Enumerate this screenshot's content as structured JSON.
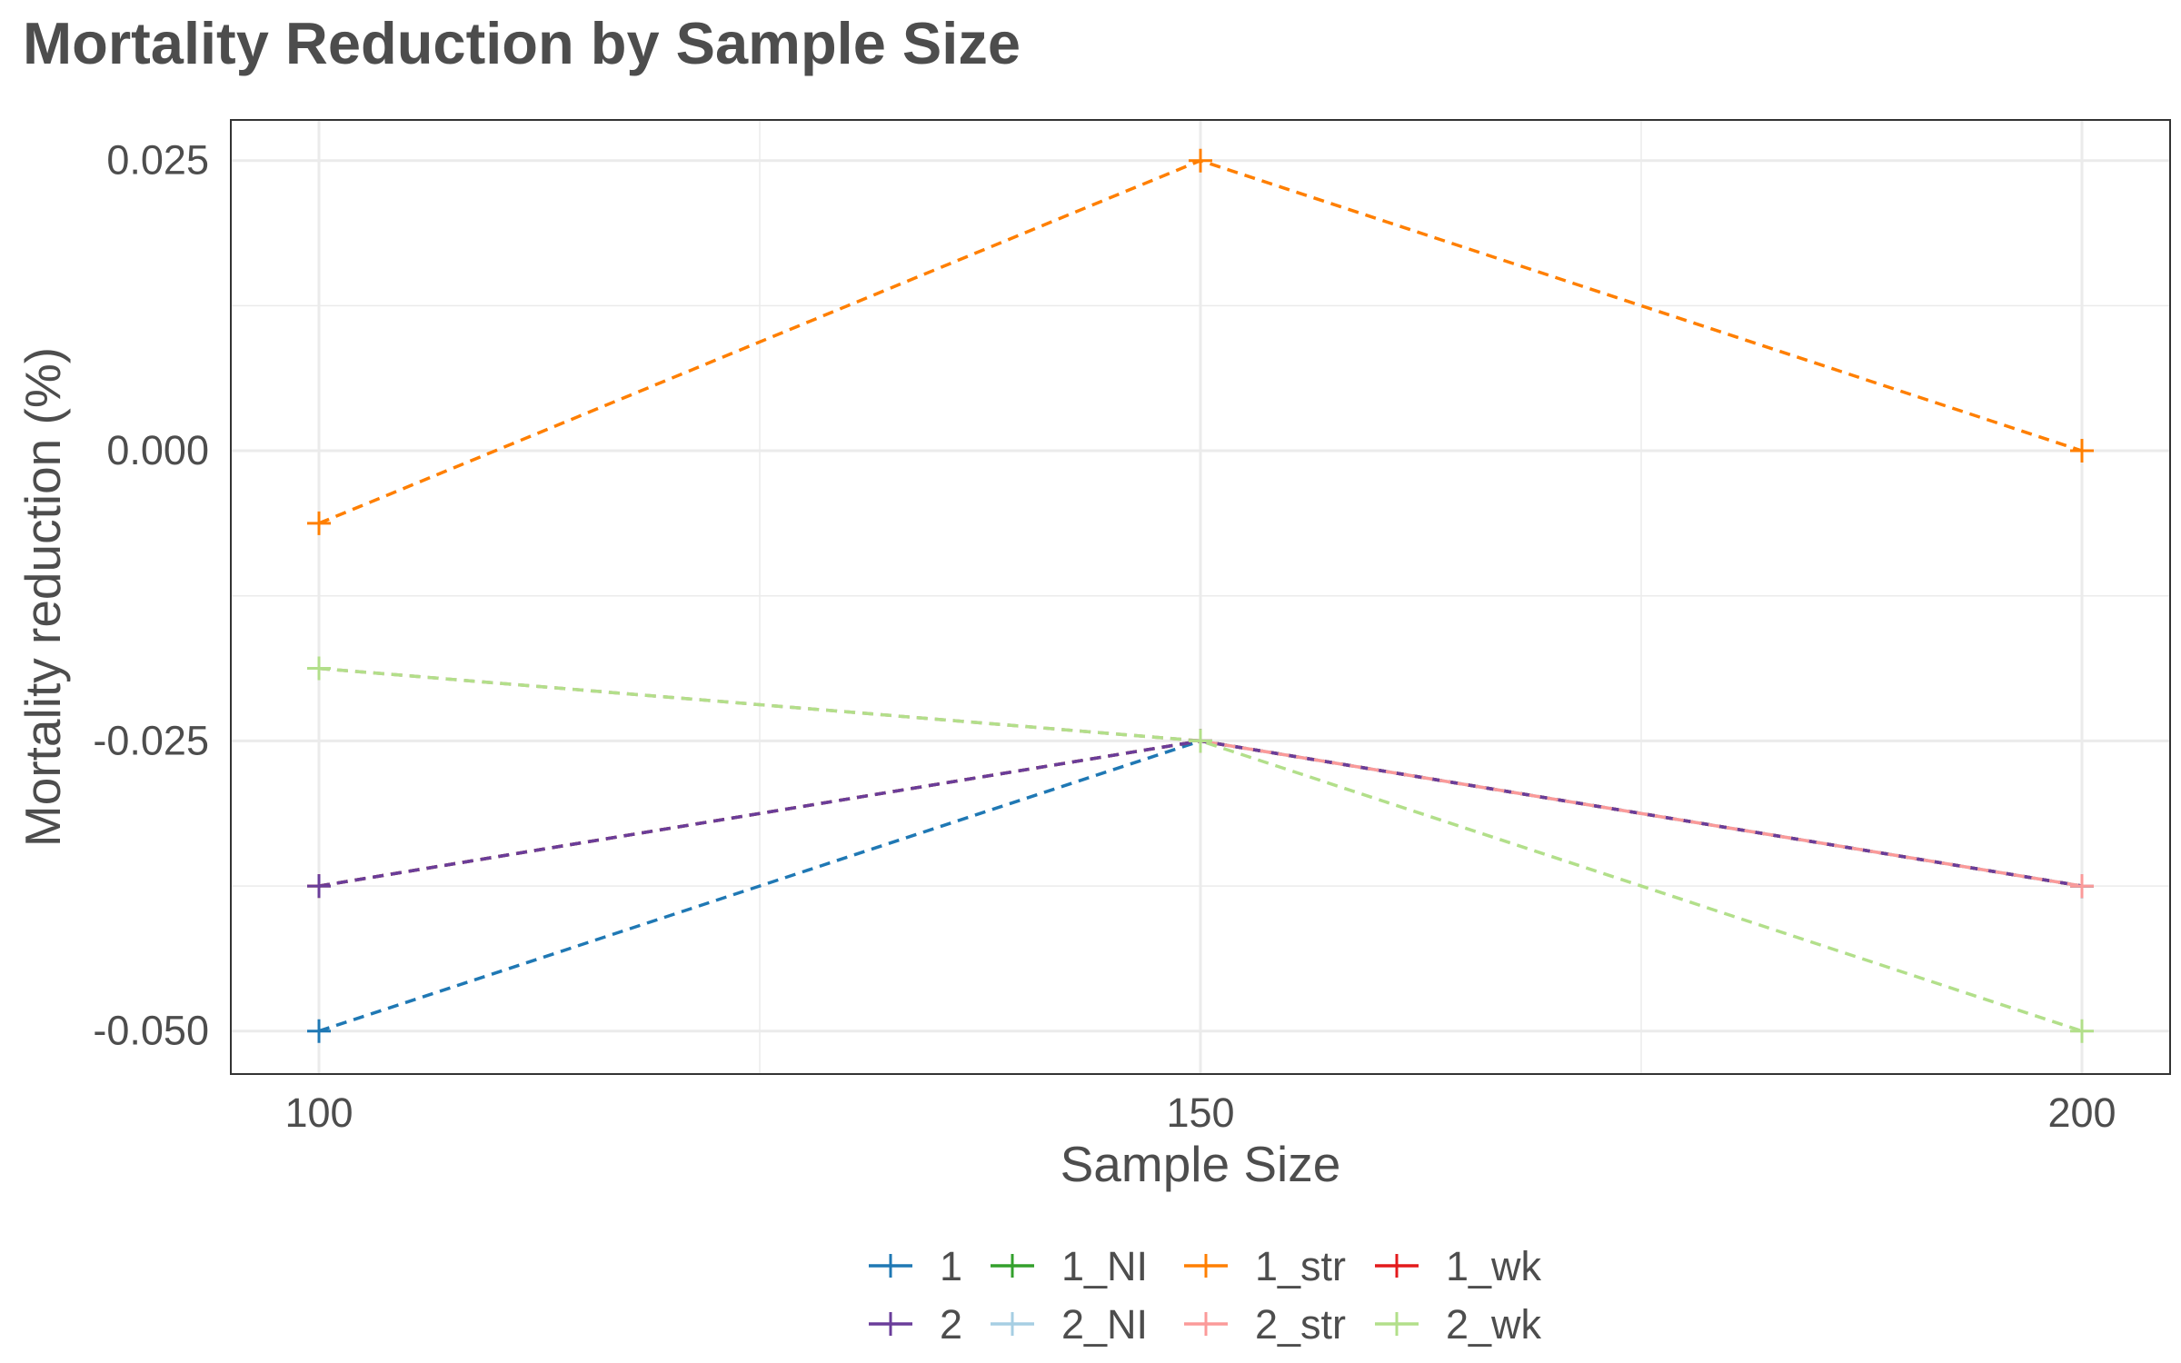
{
  "chart_data": {
    "type": "line",
    "title": "Mortality Reduction by Sample Size",
    "xlabel": "Sample Size",
    "ylabel": "Mortality reduction (%)",
    "x": [
      100,
      150,
      200
    ],
    "x_ticks": [
      "100",
      "150",
      "200"
    ],
    "y_ticks": [
      "0.025",
      "0.000",
      "-0.025",
      "-0.050"
    ],
    "xlim": [
      95,
      205
    ],
    "ylim": [
      -0.0537,
      0.0285
    ],
    "grid": true,
    "legend_position": "bottom",
    "series": [
      {
        "name": "1",
        "color": "#1f78b4",
        "values": [
          -0.05,
          -0.025,
          -0.0375
        ]
      },
      {
        "name": "1_NI",
        "color": "#33a02c",
        "values": [
          -0.0375,
          -0.025,
          -0.0375
        ]
      },
      {
        "name": "1_str",
        "color": "#ff7f00",
        "values": [
          -0.00625,
          0.025,
          0.0
        ]
      },
      {
        "name": "1_wk",
        "color": "#e31a1c",
        "values": [
          -0.0375,
          -0.025,
          -0.0375
        ]
      },
      {
        "name": "2",
        "color": "#6a3d9a",
        "values": [
          -0.0375,
          -0.025,
          -0.0375
        ]
      },
      {
        "name": "2_NI",
        "color": "#a6cee3",
        "values": [
          -0.01875,
          -0.025,
          -0.0375
        ]
      },
      {
        "name": "2_str",
        "color": "#fb9a99",
        "values": [
          -0.01875,
          -0.025,
          -0.0375
        ]
      },
      {
        "name": "2_wk",
        "color": "#b2df8a",
        "values": [
          -0.01875,
          -0.025,
          -0.05
        ]
      }
    ],
    "legend_rows": [
      [
        "1",
        "1_NI",
        "1_str",
        "1_wk"
      ],
      [
        "2",
        "2_NI",
        "2_str",
        "2_wk"
      ]
    ]
  }
}
